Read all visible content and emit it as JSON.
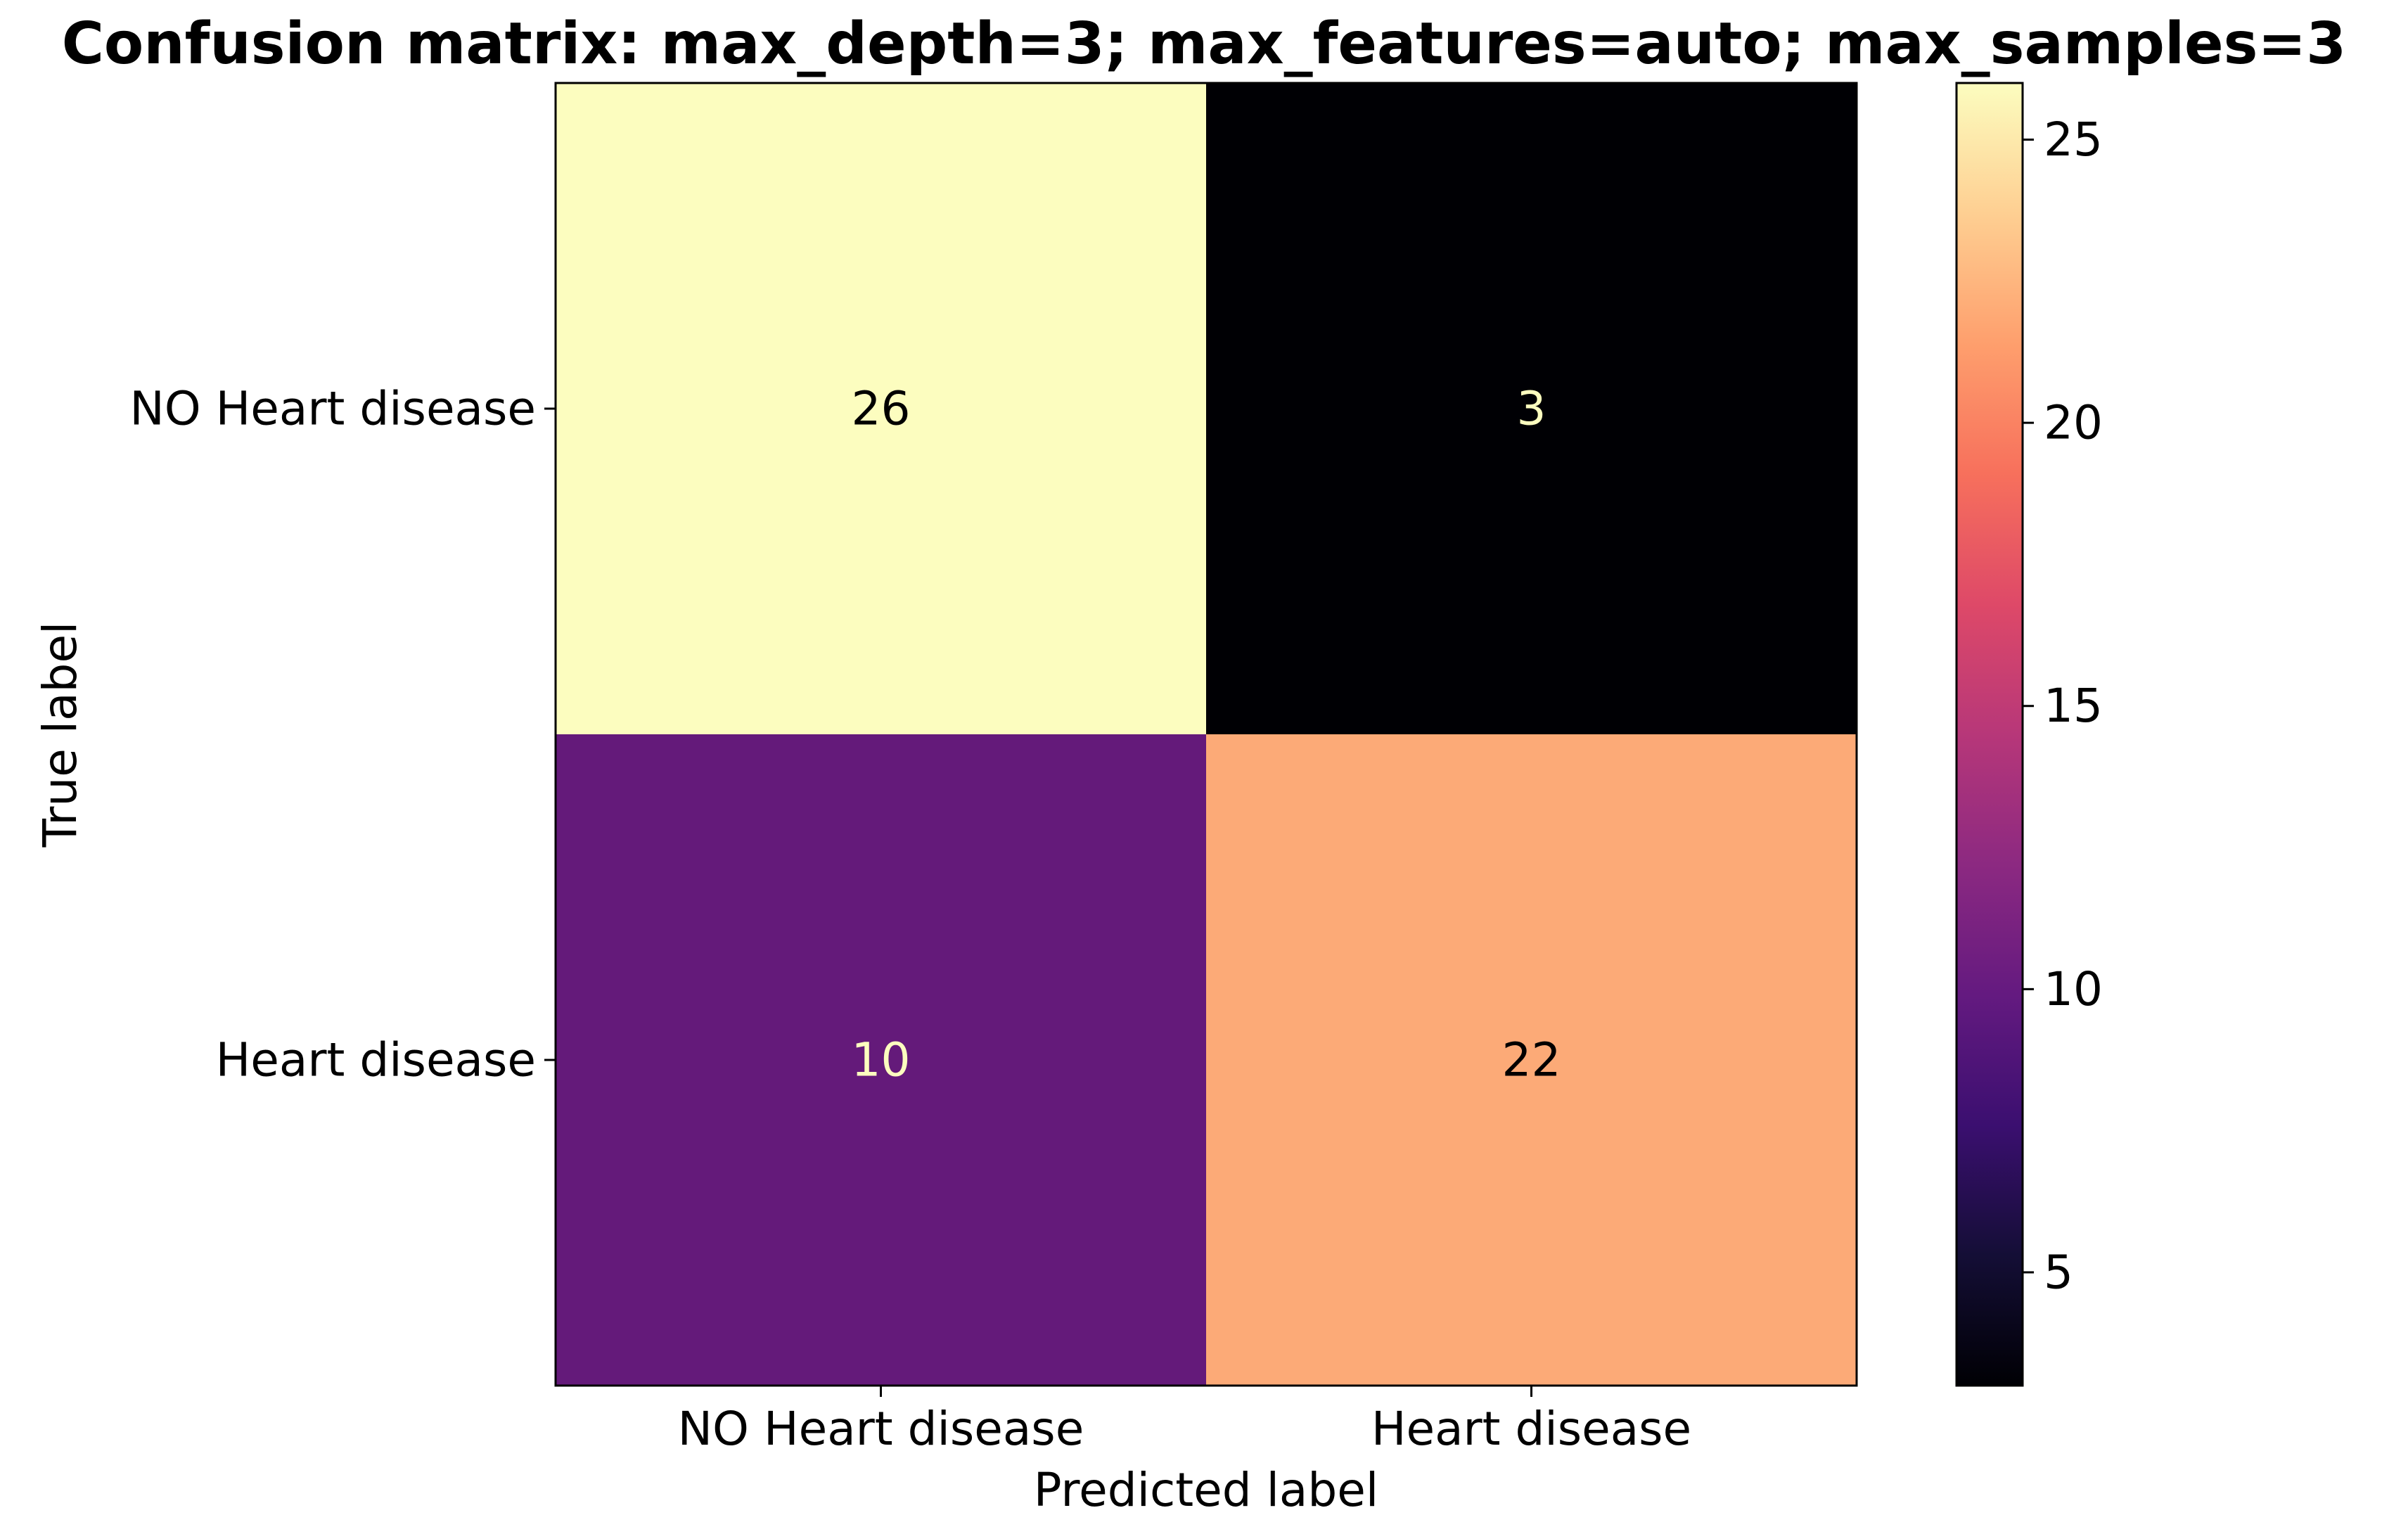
{
  "chart_data": {
    "type": "heatmap",
    "title": "Confusion matrix: max_depth=3; max_features=auto; max_samples=3",
    "xlabel": "Predicted label",
    "ylabel": "True label",
    "x_categories": [
      "NO Heart disease",
      "Heart disease"
    ],
    "y_categories": [
      "NO Heart disease",
      "Heart disease"
    ],
    "values": [
      [
        26,
        3
      ],
      [
        10,
        22
      ]
    ],
    "cell_labels": [
      [
        "26",
        "3"
      ],
      [
        "10",
        "22"
      ]
    ],
    "colormap": "magma",
    "colorbar": {
      "range": [
        3,
        26
      ],
      "ticks": [
        5,
        10,
        15,
        20,
        25
      ],
      "tick_labels": [
        "5",
        "10",
        "15",
        "20",
        "25"
      ]
    },
    "grid": false,
    "colors": {
      "cell_0_0": "#fcfdbf",
      "cell_0_1": "#000004",
      "cell_1_0": "#641a7a",
      "cell_1_1": "#fcaa77",
      "text_on_light": "#000000",
      "text_on_dark": "#fcfdbf"
    }
  }
}
